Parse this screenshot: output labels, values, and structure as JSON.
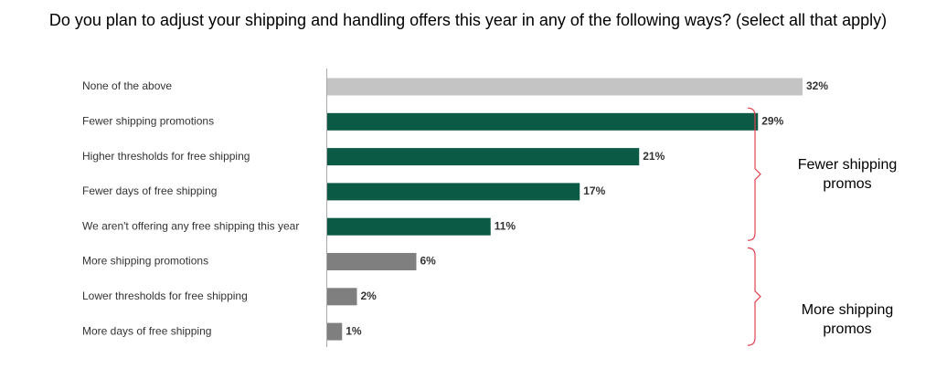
{
  "chart_data": {
    "type": "bar",
    "orientation": "horizontal",
    "title": "Do you plan to adjust your shipping and handling offers this year in any of the following ways? (select all that apply)",
    "categories": [
      "None of the above",
      "Fewer shipping promotions",
      "Higher thresholds for free shipping",
      "Fewer days of free shipping",
      "We aren't offering any free shipping this year",
      "More shipping promotions",
      "Lower thresholds for free shipping",
      "More days of free shipping"
    ],
    "values": [
      32,
      29,
      21,
      17,
      11,
      6,
      2,
      1
    ],
    "value_labels": [
      "32%",
      "29%",
      "21%",
      "17%",
      "11%",
      "6%",
      "2%",
      "1%"
    ],
    "colors": [
      "#c4c4c4",
      "#0b5a45",
      "#0b5a45",
      "#0b5a45",
      "#0b5a45",
      "#7f7f7f",
      "#7f7f7f",
      "#7f7f7f"
    ],
    "annotations": [
      {
        "text": "Fewer shipping promos",
        "from": 1,
        "to": 4
      },
      {
        "text": "More shipping promos",
        "from": 5,
        "to": 7
      }
    ]
  }
}
